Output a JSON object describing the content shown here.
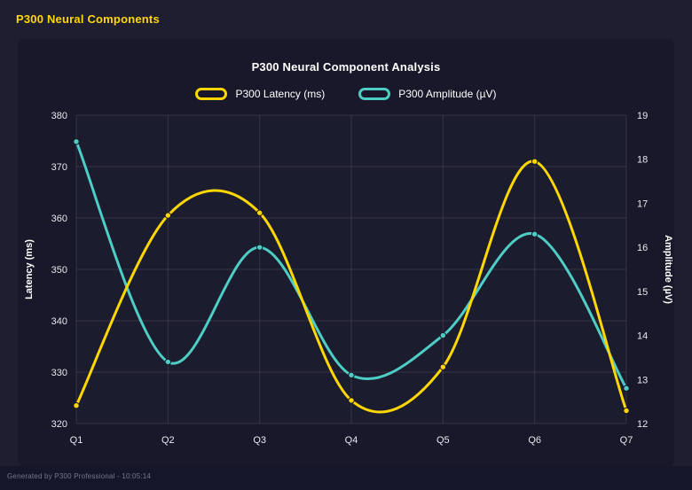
{
  "page": {
    "title": "P300 Neural Components",
    "accent_color": "#FFD700",
    "footer": "Generated by P300 Professional - 10:05:14"
  },
  "chart": {
    "title": "P300 Neural Component Analysis"
  },
  "chart_data": {
    "type": "line",
    "title": "P300 Neural Component Analysis",
    "categories": [
      "Q1",
      "Q2",
      "Q3",
      "Q4",
      "Q5",
      "Q6",
      "Q7"
    ],
    "series": [
      {
        "name": "P300 Latency (ms)",
        "color": "#FFD700",
        "axis": "left",
        "values": [
          323.5,
          360.5,
          361,
          324.5,
          331,
          371,
          322.5
        ]
      },
      {
        "name": "P300 Amplitude (µV)",
        "color": "#4ECDC4",
        "axis": "right",
        "values": [
          18.4,
          13.4,
          16.0,
          13.1,
          14.0,
          16.3,
          12.8
        ]
      }
    ],
    "left_axis": {
      "label": "Latency (ms)",
      "min": 320,
      "max": 380,
      "step": 10
    },
    "right_axis": {
      "label": "Amplitude (µV)",
      "min": 12,
      "max": 19,
      "step": 1
    },
    "grid": true,
    "legend_position": "top",
    "smoothing": "spline"
  }
}
